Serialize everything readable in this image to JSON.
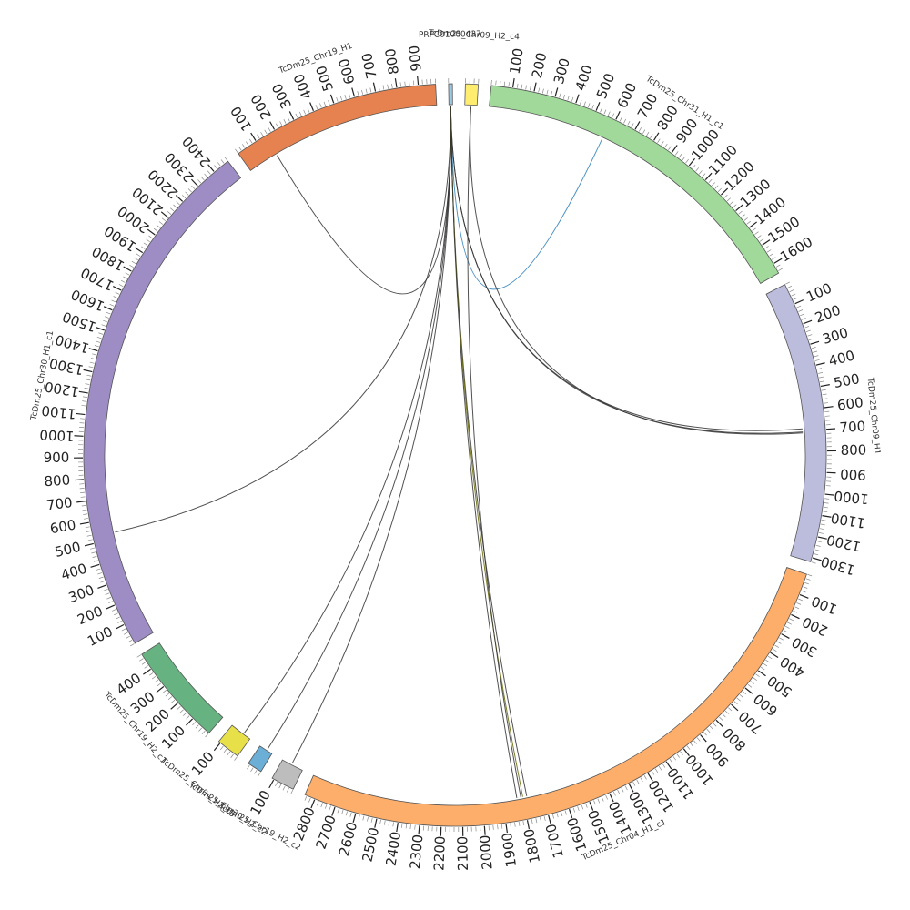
{
  "diagram": {
    "type": "circos",
    "segments": [
      {
        "name": "PRFC01000437",
        "length": 18,
        "color": "#9ecae1",
        "ticks": []
      },
      {
        "name": "TcDm25_Chr09_H2_c4",
        "length": 60,
        "color": "#ffed6f",
        "ticks": []
      },
      {
        "name": "TcDm25_Chr31_H1_c1",
        "length": 1650,
        "color": "#a1d99b",
        "ticks": [
          "100",
          "200",
          "300",
          "400",
          "500",
          "600",
          "700",
          "800",
          "900",
          "1000",
          "1100",
          "1200",
          "1300",
          "1400",
          "1500",
          "1600"
        ]
      },
      {
        "name": "TcDm25_Chr09_H1",
        "length": 1320,
        "color": "#bcbddc",
        "ticks": [
          "100",
          "200",
          "300",
          "400",
          "500",
          "600",
          "700",
          "800",
          "900",
          "1000",
          "1100",
          "1200",
          "1300"
        ]
      },
      {
        "name": "TcDm25_Chr04_H1_c1",
        "length": 2850,
        "color": "#fdae6b",
        "ticks": [
          "100",
          "200",
          "300",
          "400",
          "500",
          "600",
          "700",
          "800",
          "900",
          "1000",
          "1100",
          "1200",
          "1300",
          "1400",
          "1500",
          "1600",
          "1700",
          "1800",
          "1900",
          "2000",
          "2100",
          "2200",
          "2300",
          "2400",
          "2500",
          "2600",
          "2700",
          "2800"
        ]
      },
      {
        "name": "TcDm25_Chr19_H2_c2",
        "length": 110,
        "color": "#bdbdbd",
        "ticks": [
          "100"
        ]
      },
      {
        "name": "TcDm25_Chr30_H2_c2",
        "length": 70,
        "color": "#6baed6",
        "ticks": []
      },
      {
        "name": "TcDm25_Chr04_H2_c5",
        "length": 110,
        "color": "#e7e049",
        "ticks": [
          "100"
        ]
      },
      {
        "name": "TcDm25_Chr19_H2_c1",
        "length": 480,
        "color": "#66b381",
        "ticks": [
          "100",
          "200",
          "300",
          "400"
        ]
      },
      {
        "name": "TcDm25_Chr30_H1_c1",
        "length": 2480,
        "color": "#9e8dc5",
        "ticks": [
          "100",
          "200",
          "300",
          "400",
          "500",
          "600",
          "700",
          "800",
          "900",
          "1000",
          "1100",
          "1200",
          "1300",
          "1400",
          "1500",
          "1600",
          "1700",
          "1800",
          "1900",
          "2000",
          "2100",
          "2200",
          "2300",
          "2400"
        ]
      },
      {
        "name": "TcDm25_Chr19_H1",
        "length": 980,
        "color": "#e6824f",
        "ticks": [
          "100",
          "200",
          "300",
          "400",
          "500",
          "600",
          "700",
          "800",
          "900"
        ]
      }
    ],
    "links": [
      {
        "from": "PRFC01000437",
        "from_pos": 9,
        "to": "TcDm25_Chr19_H1",
        "to_pos": 150,
        "color": "#333333"
      },
      {
        "from": "PRFC01000437",
        "from_pos": 9,
        "to": "TcDm25_Chr31_H1_c1",
        "to_pos": 580,
        "color": "#2c7fb8"
      },
      {
        "from": "PRFC01000437",
        "from_pos": 9,
        "to": "TcDm25_Chr09_H1",
        "to_pos": 690,
        "color": "#333333"
      },
      {
        "from": "PRFC01000437",
        "from_pos": 9,
        "to": "TcDm25_Chr09_H1",
        "to_pos": 705,
        "color": "#333333"
      },
      {
        "from": "PRFC01000437",
        "from_pos": 9,
        "to": "TcDm25_Chr30_H1_c1",
        "to_pos": 530,
        "color": "#333333"
      },
      {
        "from": "PRFC01000437",
        "from_pos": 9,
        "to": "TcDm25_Chr04_H2_c5",
        "to_pos": 40,
        "color": "#333333"
      },
      {
        "from": "PRFC01000437",
        "from_pos": 9,
        "to": "TcDm25_Chr30_H2_c2",
        "to_pos": 30,
        "color": "#333333"
      },
      {
        "from": "PRFC01000437",
        "from_pos": 9,
        "to": "TcDm25_Chr19_H2_c2",
        "to_pos": 60,
        "color": "#333333"
      },
      {
        "from": "PRFC01000437",
        "from_pos": 9,
        "to": "TcDm25_Chr04_H1_c1",
        "to_pos": 1780,
        "color": "#333333"
      },
      {
        "from": "PRFC01000437",
        "from_pos": 9,
        "to": "TcDm25_Chr04_H1_c1",
        "to_pos": 1800,
        "color": "#666600"
      },
      {
        "from": "PRFC01000437",
        "from_pos": 9,
        "to": "TcDm25_Chr04_H1_c1",
        "to_pos": 1830,
        "color": "#333333"
      },
      {
        "from": "TcDm25_Chr09_H2_c4",
        "from_pos": 30,
        "to": "TcDm25_Chr09_H1",
        "to_pos": 710,
        "color": "#333333"
      },
      {
        "from": "TcDm25_Chr09_H2_c4",
        "from_pos": 30,
        "to": "TcDm25_Chr04_H1_c1",
        "to_pos": 1810,
        "color": "#333333"
      }
    ]
  }
}
